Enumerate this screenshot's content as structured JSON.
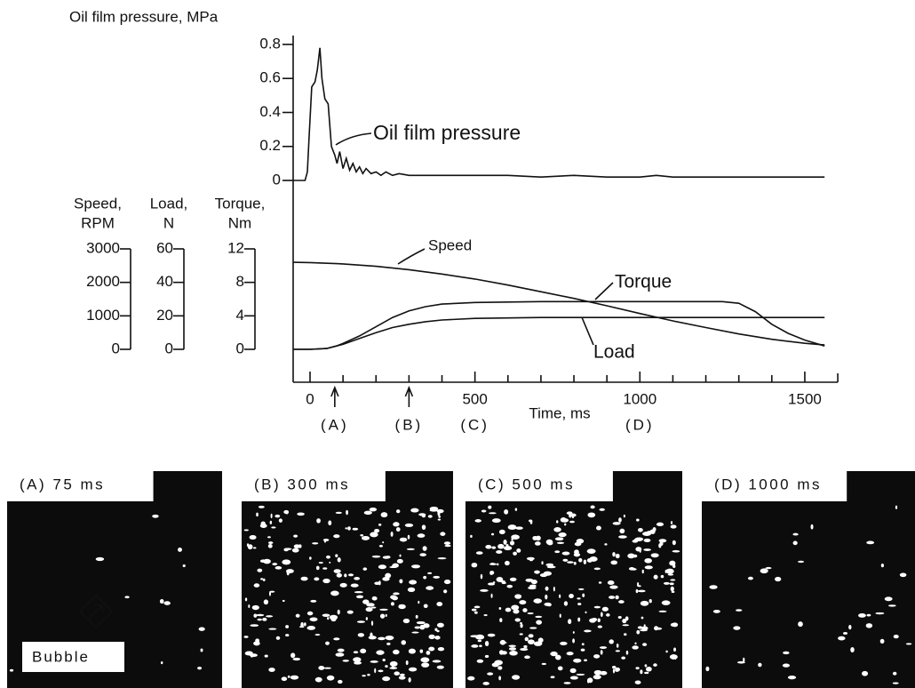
{
  "chart_data": [
    {
      "type": "line",
      "y_label": "Oil film pressure, MPa",
      "xlim": [
        -50,
        1600
      ],
      "ylim": [
        0,
        0.8
      ],
      "yticks": [
        0,
        0.2,
        0.4,
        0.6,
        0.8
      ],
      "series": [
        {
          "name": "Oil film pressure",
          "color": "#111111",
          "x": [
            -50,
            -15,
            -8,
            -3,
            5,
            15,
            22,
            30,
            36,
            45,
            55,
            65,
            75,
            82,
            90,
            100,
            110,
            120,
            130,
            140,
            150,
            160,
            170,
            185,
            200,
            215,
            230,
            250,
            270,
            300,
            350,
            400,
            500,
            600,
            700,
            800,
            900,
            950,
            1000,
            1050,
            1100,
            1200,
            1300,
            1400,
            1560
          ],
          "values": [
            0,
            0,
            0.05,
            0.25,
            0.55,
            0.58,
            0.65,
            0.78,
            0.6,
            0.48,
            0.45,
            0.2,
            0.15,
            0.1,
            0.17,
            0.07,
            0.13,
            0.06,
            0.1,
            0.05,
            0.08,
            0.04,
            0.07,
            0.04,
            0.05,
            0.03,
            0.05,
            0.03,
            0.04,
            0.03,
            0.03,
            0.03,
            0.03,
            0.03,
            0.02,
            0.03,
            0.02,
            0.02,
            0.02,
            0.03,
            0.02,
            0.02,
            0.02,
            0.02,
            0.02
          ]
        }
      ]
    },
    {
      "type": "line",
      "x_label": "Time, ms",
      "xlim": [
        -50,
        1600
      ],
      "xticks": [
        0,
        500,
        1000,
        1500
      ],
      "xminor_ticks": [
        100,
        200,
        300,
        400,
        600,
        700,
        800,
        900,
        1100,
        1200,
        1300,
        1400
      ],
      "y_label": [
        "Torque,",
        "Nm"
      ],
      "ylim": [
        0,
        12
      ],
      "yticks": [
        0,
        4,
        8,
        12
      ],
      "y2_label": [
        "Speed,",
        "RPM"
      ],
      "y2lim": [
        0,
        3000
      ],
      "y2ticks": [
        0,
        1000,
        2000,
        3000
      ],
      "y3_label": [
        "Load,",
        "N"
      ],
      "y3lim": [
        0,
        60
      ],
      "y3ticks": [
        0,
        20,
        40,
        60
      ],
      "series": [
        {
          "name": "Speed",
          "axis": "y2",
          "color": "#111111",
          "x": [
            -50,
            0,
            100,
            200,
            300,
            400,
            500,
            600,
            700,
            800,
            900,
            1000,
            1100,
            1200,
            1300,
            1400,
            1500,
            1560
          ],
          "values": [
            2600,
            2590,
            2550,
            2480,
            2380,
            2250,
            2100,
            1920,
            1720,
            1520,
            1300,
            1070,
            850,
            650,
            460,
            300,
            180,
            130
          ]
        },
        {
          "name": "Torque",
          "color": "#111111",
          "x": [
            -50,
            0,
            50,
            80,
            100,
            150,
            200,
            250,
            300,
            350,
            400,
            500,
            700,
            1000,
            1250,
            1300,
            1350,
            1400,
            1450,
            1500,
            1560
          ],
          "values": [
            0,
            0,
            0.1,
            0.4,
            0.7,
            1.6,
            2.7,
            3.8,
            4.6,
            5.1,
            5.4,
            5.6,
            5.7,
            5.7,
            5.7,
            5.5,
            4.5,
            3.0,
            1.9,
            1.1,
            0.4
          ]
        },
        {
          "name": "Load",
          "axis": "y3",
          "color": "#111111",
          "x": [
            -50,
            0,
            50,
            100,
            150,
            200,
            250,
            300,
            350,
            400,
            500,
            700,
            1000,
            1560
          ],
          "values": [
            0,
            0,
            0.5,
            3,
            6.5,
            10,
            13,
            15,
            16.5,
            17.5,
            18.5,
            19,
            19,
            19
          ]
        }
      ],
      "events": [
        {
          "label": "(A)",
          "x": 75,
          "arrow": true
        },
        {
          "label": "(B)",
          "x": 300,
          "arrow": true
        },
        {
          "label": "(C)",
          "x": 500,
          "arrow": false
        },
        {
          "label": "(D)",
          "x": 1000,
          "arrow": false
        }
      ]
    }
  ],
  "photos": [
    {
      "label": "(A) 75 ms"
    },
    {
      "label": "(B) 300 ms"
    },
    {
      "label": "(C) 500 ms"
    },
    {
      "label": "(D) 1000 ms"
    }
  ],
  "bubble_label": "Bubble"
}
